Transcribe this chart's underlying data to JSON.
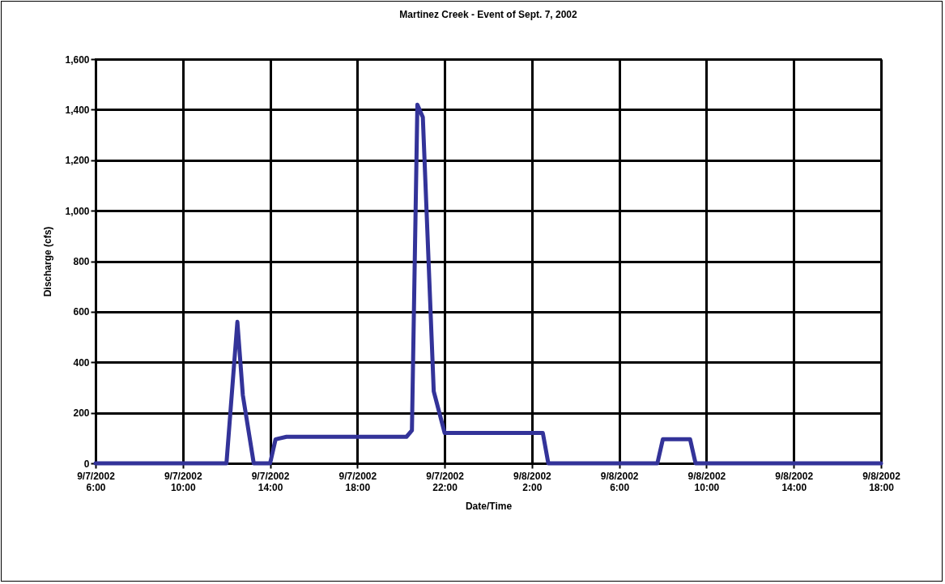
{
  "chart_data": {
    "type": "line",
    "title": "Martinez Creek - Event of Sept. 7, 2002",
    "xlabel": "Date/Time",
    "ylabel": "Discharge (cfs)",
    "x": [
      "2002-09-07T06:00",
      "2002-09-07T12:00",
      "2002-09-07T12:30",
      "2002-09-07T12:45",
      "2002-09-07T13:15",
      "2002-09-07T14:00",
      "2002-09-07T14:15",
      "2002-09-07T14:45",
      "2002-09-07T20:15",
      "2002-09-07T20:30",
      "2002-09-07T20:45",
      "2002-09-07T21:00",
      "2002-09-07T21:30",
      "2002-09-07T22:00",
      "2002-09-08T02:30",
      "2002-09-08T02:45",
      "2002-09-08T07:45",
      "2002-09-08T08:00",
      "2002-09-08T09:15",
      "2002-09-08T09:30",
      "2002-09-08T18:00"
    ],
    "series": [
      {
        "color": "#333399",
        "values": [
          0,
          0,
          560,
          270,
          0,
          0,
          95,
          105,
          105,
          130,
          1420,
          1370,
          285,
          120,
          120,
          0,
          0,
          95,
          95,
          0,
          0
        ]
      }
    ],
    "xlim": [
      "2002-09-07T06:00",
      "2002-09-08T18:00"
    ],
    "xticks": [
      {
        "value": "2002-09-07T06:00",
        "label": "9/7/2002 6:00"
      },
      {
        "value": "2002-09-07T10:00",
        "label": "9/7/2002 10:00"
      },
      {
        "value": "2002-09-07T14:00",
        "label": "9/7/2002 14:00"
      },
      {
        "value": "2002-09-07T18:00",
        "label": "9/7/2002 18:00"
      },
      {
        "value": "2002-09-07T22:00",
        "label": "9/7/2002 22:00"
      },
      {
        "value": "2002-09-08T02:00",
        "label": "9/8/2002 2:00"
      },
      {
        "value": "2002-09-08T06:00",
        "label": "9/8/2002 6:00"
      },
      {
        "value": "2002-09-08T10:00",
        "label": "9/8/2002 10:00"
      },
      {
        "value": "2002-09-08T14:00",
        "label": "9/8/2002 14:00"
      },
      {
        "value": "2002-09-08T18:00",
        "label": "9/8/2002 18:00"
      }
    ],
    "ylim": [
      0,
      1600
    ],
    "yticks": [
      {
        "value": 0,
        "label": "0"
      },
      {
        "value": 200,
        "label": "200"
      },
      {
        "value": 400,
        "label": "400"
      },
      {
        "value": 600,
        "label": "600"
      },
      {
        "value": 800,
        "label": "800"
      },
      {
        "value": 1000,
        "label": "1,000"
      },
      {
        "value": 1200,
        "label": "1,200"
      },
      {
        "value": 1400,
        "label": "1,400"
      },
      {
        "value": 1600,
        "label": "1,600"
      }
    ],
    "grid": true,
    "marker": "none",
    "line_style": "solid"
  }
}
